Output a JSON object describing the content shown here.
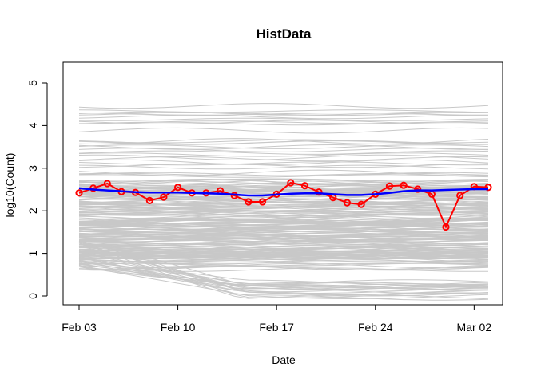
{
  "chart_data": {
    "type": "line",
    "title": "HistData",
    "xlabel": "Date",
    "ylabel": "log10(Count)",
    "ylim": [
      0,
      5
    ],
    "xlim": [
      "2020-02-03",
      "2020-03-03"
    ],
    "y_ticks": [
      "0",
      "1",
      "2",
      "3",
      "4",
      "5"
    ],
    "x_ticks": [
      {
        "date": "2020-02-03",
        "label": "Feb 03"
      },
      {
        "date": "2020-02-10",
        "label": "Feb 10"
      },
      {
        "date": "2020-02-17",
        "label": "Feb 17"
      },
      {
        "date": "2020-02-24",
        "label": "Feb 24"
      },
      {
        "date": "2020-03-02",
        "label": "Mar 02"
      }
    ],
    "grid": false,
    "legend": "none",
    "colors": {
      "observed": "#ff0000",
      "smoothed": "#0000ff",
      "background": "#c8c8c8"
    },
    "series": [
      {
        "role": "observed",
        "x": [
          "2020-02-03",
          "2020-02-04",
          "2020-02-05",
          "2020-02-06",
          "2020-02-07",
          "2020-02-08",
          "2020-02-09",
          "2020-02-10",
          "2020-02-11",
          "2020-02-12",
          "2020-02-13",
          "2020-02-14",
          "2020-02-15",
          "2020-02-16",
          "2020-02-17",
          "2020-02-18",
          "2020-02-19",
          "2020-02-20",
          "2020-02-21",
          "2020-02-22",
          "2020-02-23",
          "2020-02-24",
          "2020-02-25",
          "2020-02-26",
          "2020-02-27",
          "2020-02-28",
          "2020-02-29",
          "2020-03-01",
          "2020-03-02",
          "2020-03-03"
        ],
        "values": [
          2.42,
          2.53,
          2.64,
          2.45,
          2.43,
          2.24,
          2.32,
          2.55,
          2.42,
          2.42,
          2.47,
          2.36,
          2.21,
          2.21,
          2.39,
          2.66,
          2.59,
          2.44,
          2.31,
          2.19,
          2.15,
          2.39,
          2.58,
          2.6,
          2.51,
          2.39,
          1.62,
          2.36,
          2.57,
          2.55
        ]
      },
      {
        "role": "smoothed",
        "x": [
          "2020-02-03",
          "2020-02-04",
          "2020-02-05",
          "2020-02-06",
          "2020-02-07",
          "2020-02-08",
          "2020-02-09",
          "2020-02-10",
          "2020-02-11",
          "2020-02-12",
          "2020-02-13",
          "2020-02-14",
          "2020-02-15",
          "2020-02-16",
          "2020-02-17",
          "2020-02-18",
          "2020-02-19",
          "2020-02-20",
          "2020-02-21",
          "2020-02-22",
          "2020-02-23",
          "2020-02-24",
          "2020-02-25",
          "2020-02-26",
          "2020-02-27",
          "2020-02-28",
          "2020-02-29",
          "2020-03-01",
          "2020-03-02",
          "2020-03-03"
        ],
        "values": [
          2.53,
          2.5,
          2.48,
          2.46,
          2.44,
          2.43,
          2.43,
          2.43,
          2.42,
          2.41,
          2.4,
          2.38,
          2.36,
          2.36,
          2.38,
          2.4,
          2.41,
          2.41,
          2.39,
          2.37,
          2.37,
          2.39,
          2.42,
          2.46,
          2.48,
          2.48,
          2.49,
          2.5,
          2.51,
          2.51
        ]
      }
    ]
  }
}
